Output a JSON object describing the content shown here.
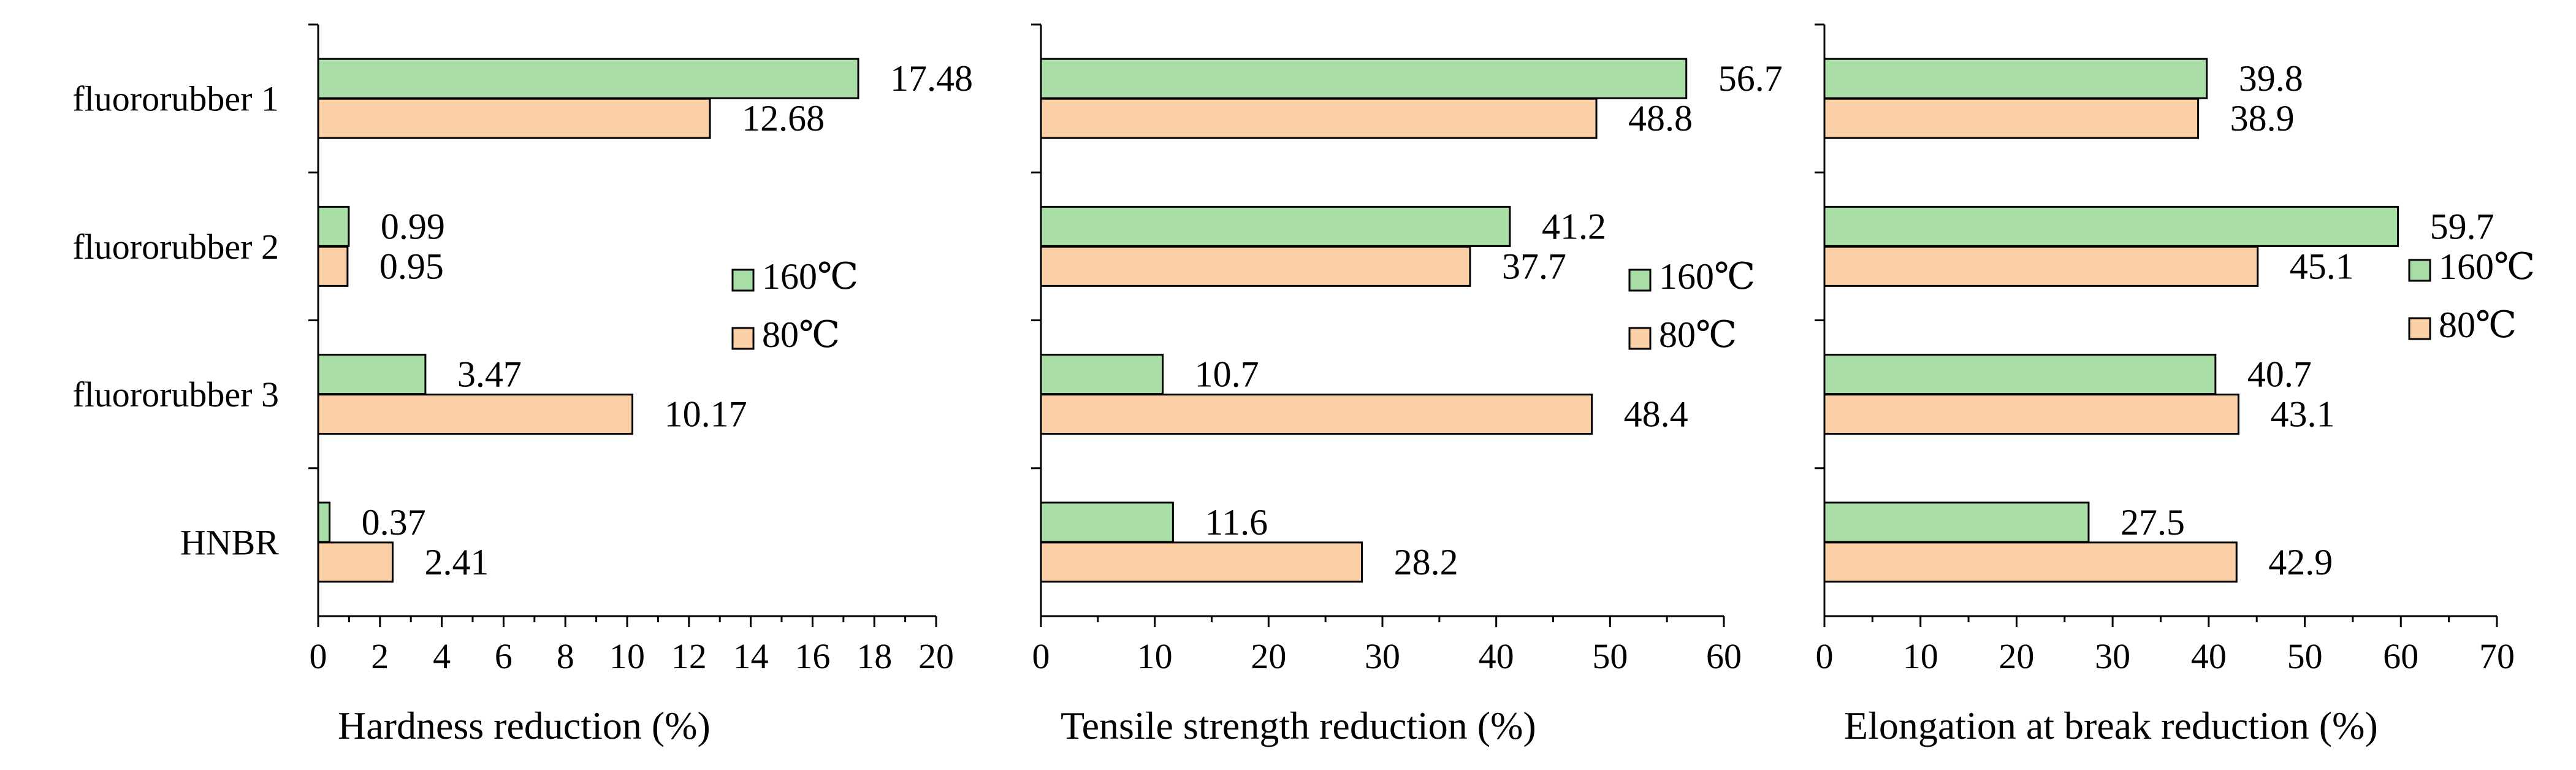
{
  "chart_data": [
    {
      "type": "bar",
      "orientation": "horizontal",
      "categories": [
        "fluororubber 1",
        "fluororubber 2",
        "fluororubber 3",
        "HNBR"
      ],
      "series": [
        {
          "name": "160℃",
          "values": [
            17.48,
            0.99,
            3.47,
            0.37
          ],
          "labels": [
            "17.48",
            "0.99",
            "3.47",
            "0.37"
          ]
        },
        {
          "name": "80℃",
          "values": [
            12.68,
            0.95,
            10.17,
            2.41
          ],
          "labels": [
            "12.68",
            "0.95",
            "10.17",
            "2.41"
          ]
        }
      ],
      "xlabel": "Hardness reduction (%)",
      "xlim": [
        0,
        20
      ],
      "xticks": [
        "0",
        "2",
        "4",
        "6",
        "8",
        "10",
        "12",
        "14",
        "16",
        "18",
        "20"
      ],
      "legend": "right"
    },
    {
      "type": "bar",
      "orientation": "horizontal",
      "categories": [
        "fluororubber 1",
        "fluororubber 2",
        "fluororubber 3",
        "HNBR"
      ],
      "series": [
        {
          "name": "160℃",
          "values": [
            56.7,
            41.2,
            10.7,
            11.6
          ],
          "labels": [
            "56.7",
            "41.2",
            "10.7",
            "11.6"
          ]
        },
        {
          "name": "80℃",
          "values": [
            48.8,
            37.7,
            48.4,
            28.2
          ],
          "labels": [
            "48.8",
            "37.7",
            "48.4",
            "28.2"
          ]
        }
      ],
      "xlabel": "Tensile strength reduction (%)",
      "xlim": [
        0,
        60
      ],
      "xticks": [
        "0",
        "10",
        "20",
        "30",
        "40",
        "50",
        "60"
      ],
      "legend": "right"
    },
    {
      "type": "bar",
      "orientation": "horizontal",
      "categories": [
        "fluororubber 1",
        "fluororubber 2",
        "fluororubber 3",
        "HNBR"
      ],
      "series": [
        {
          "name": "160℃",
          "values": [
            39.8,
            59.7,
            40.7,
            27.5
          ],
          "labels": [
            "39.8",
            "59.7",
            "40.7",
            "27.5"
          ]
        },
        {
          "name": "80℃",
          "values": [
            38.9,
            45.1,
            43.1,
            42.9
          ],
          "labels": [
            "38.9",
            "45.1",
            "43.1",
            "42.9"
          ]
        }
      ],
      "xlabel": "Elongation at break reduction (%)",
      "xlim": [
        0,
        70
      ],
      "xticks": [
        "0",
        "10",
        "20",
        "30",
        "40",
        "50",
        "60",
        "70"
      ],
      "legend": "right"
    }
  ],
  "colors": {
    "160℃": "#a9dfa6",
    "80℃": "#fbcfa6",
    "axis": "#000000"
  }
}
